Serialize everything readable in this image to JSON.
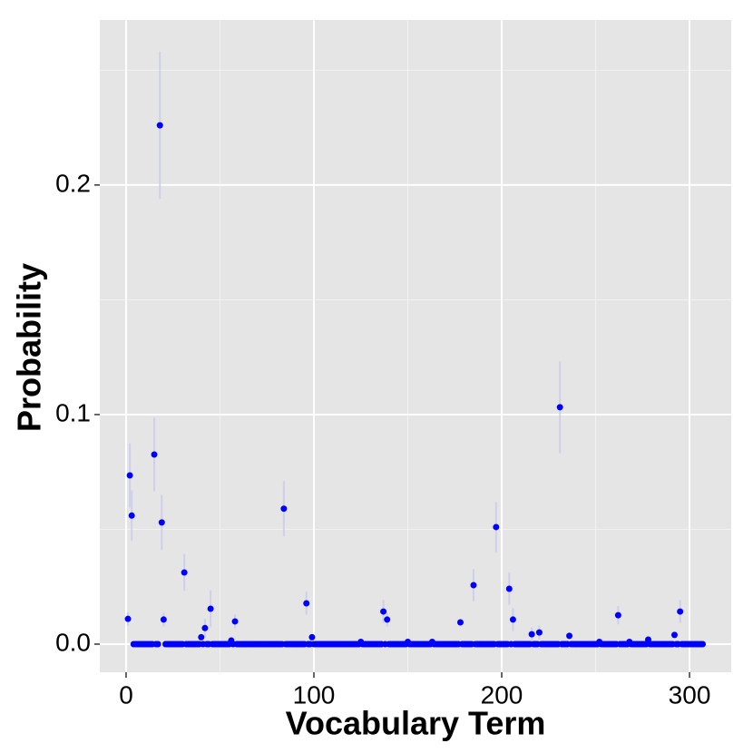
{
  "chart_data": {
    "type": "errorscatter",
    "x_label": "Vocabulary Term",
    "y_label": "Probability",
    "color": "#0000ff",
    "error_color": "#c9c9ee",
    "xlim": [
      -14,
      322.2
    ],
    "ylim": [
      -0.01225,
      0.2719
    ],
    "xticks": [
      0,
      100,
      200,
      300
    ],
    "yticks": [
      {
        "value": 0,
        "label": "0.0"
      },
      0.1,
      0.2
    ],
    "x_minor_grid": [
      50,
      150,
      250
    ],
    "y_minor_grid": [
      0.05,
      0.15,
      0.25
    ],
    "grid": true,
    "x": [
      1,
      2,
      3,
      4,
      5,
      6,
      7,
      8,
      9,
      10,
      11,
      12,
      13,
      14,
      15,
      16,
      17,
      18,
      19,
      20,
      21,
      22,
      23,
      24,
      25,
      26,
      27,
      28,
      29,
      30,
      31,
      32,
      33,
      34,
      35,
      36,
      37,
      38,
      39,
      40,
      41,
      42,
      43,
      44,
      45,
      46,
      47,
      48,
      49,
      50,
      51,
      52,
      53,
      54,
      55,
      56,
      57,
      58,
      59,
      60,
      61,
      62,
      63,
      64,
      65,
      66,
      67,
      68,
      69,
      70,
      71,
      72,
      73,
      74,
      75,
      76,
      77,
      78,
      79,
      80,
      81,
      82,
      83,
      84,
      85,
      86,
      87,
      88,
      89,
      90,
      91,
      92,
      93,
      94,
      95,
      96,
      97,
      98,
      99,
      100,
      101,
      102,
      103,
      104,
      105,
      106,
      107,
      108,
      109,
      110,
      111,
      112,
      113,
      114,
      115,
      116,
      117,
      118,
      119,
      120,
      121,
      122,
      123,
      124,
      125,
      126,
      127,
      128,
      129,
      130,
      131,
      132,
      133,
      134,
      135,
      136,
      137,
      138,
      139,
      140,
      141,
      142,
      143,
      144,
      145,
      146,
      147,
      148,
      149,
      150,
      151,
      152,
      153,
      154,
      155,
      156,
      157,
      158,
      159,
      160,
      161,
      162,
      163,
      164,
      165,
      166,
      167,
      168,
      169,
      170,
      171,
      172,
      173,
      174,
      175,
      176,
      177,
      178,
      179,
      180,
      181,
      182,
      183,
      184,
      185,
      186,
      187,
      188,
      189,
      190,
      191,
      192,
      193,
      194,
      195,
      196,
      197,
      198,
      199,
      200,
      201,
      202,
      203,
      204,
      205,
      206,
      207,
      208,
      209,
      210,
      211,
      212,
      213,
      214,
      215,
      216,
      217,
      218,
      219,
      220,
      221,
      222,
      223,
      224,
      225,
      226,
      227,
      228,
      229,
      230,
      231,
      232,
      233,
      234,
      235,
      236,
      237,
      238,
      239,
      240,
      241,
      242,
      243,
      244,
      245,
      246,
      247,
      248,
      249,
      250,
      251,
      252,
      253,
      254,
      255,
      256,
      257,
      258,
      259,
      260,
      261,
      262,
      263,
      264,
      265,
      266,
      267,
      268,
      269,
      270,
      271,
      272,
      273,
      274,
      275,
      276,
      277,
      278,
      279,
      280,
      281,
      282,
      283,
      284,
      285,
      286,
      287,
      288,
      289,
      290,
      291,
      292,
      293,
      294,
      295,
      296,
      297,
      298,
      299,
      300,
      301,
      302,
      303,
      304,
      305,
      306,
      307
    ],
    "values": [
      0.011,
      0.0735,
      0.056,
      0,
      0,
      0,
      0,
      0,
      0,
      0,
      0,
      0,
      0,
      0,
      0.0826,
      0,
      0,
      0.226,
      0.053,
      0.0107,
      0,
      0,
      0,
      0,
      0,
      0,
      0,
      0,
      0,
      0,
      0.0312,
      0,
      0,
      0,
      0,
      0,
      0,
      0,
      0,
      0.003,
      0,
      0.007,
      0,
      0,
      0.0154,
      0,
      0,
      0,
      0,
      0,
      0,
      0,
      0,
      0,
      0,
      0.0016,
      0,
      0.0099,
      0,
      0,
      0,
      0,
      0,
      0,
      0,
      0,
      0,
      0,
      0,
      0,
      0,
      0,
      0,
      0,
      0,
      0,
      0,
      0,
      0,
      0,
      0,
      0,
      0,
      0.059,
      0,
      0,
      0,
      0,
      0,
      0,
      0,
      0,
      0,
      0,
      0,
      0.0178,
      0,
      0,
      0.003,
      0,
      0,
      0,
      0,
      0,
      0,
      0,
      0,
      0,
      0,
      0,
      0,
      0,
      0,
      0,
      0,
      0,
      0,
      0,
      0,
      0,
      0,
      0,
      0,
      0,
      0.001,
      0,
      0,
      0,
      0,
      0,
      0,
      0,
      0,
      0,
      0,
      0,
      0.0142,
      0,
      0.0107,
      0,
      0,
      0,
      0,
      0,
      0,
      0,
      0,
      0,
      0,
      0.001,
      0,
      0,
      0,
      0,
      0,
      0,
      0,
      0,
      0,
      0,
      0,
      0,
      0.001,
      0,
      0,
      0,
      0,
      0,
      0,
      0,
      0,
      0,
      0,
      0,
      0,
      0,
      0,
      0.0095,
      0,
      0,
      0,
      0,
      0,
      0,
      0.0257,
      0,
      0,
      0,
      0,
      0,
      0,
      0,
      0,
      0,
      0,
      0,
      0.051,
      0,
      0,
      0,
      0,
      0,
      0,
      0.0241,
      0,
      0.0107,
      0,
      0,
      0,
      0,
      0,
      0,
      0,
      0,
      0,
      0.0043,
      0,
      0,
      0,
      0.0051,
      0,
      0,
      0,
      0,
      0,
      0,
      0,
      0,
      0,
      0,
      0.1032,
      0,
      0,
      0,
      0,
      0.0036,
      0,
      0,
      0,
      0,
      0,
      0,
      0,
      0,
      0,
      0,
      0,
      0,
      0,
      0,
      0,
      0.001,
      0,
      0,
      0,
      0,
      0,
      0,
      0,
      0,
      0,
      0.0126,
      0,
      0,
      0,
      0,
      0,
      0.001,
      0,
      0,
      0,
      0,
      0,
      0,
      0,
      0,
      0,
      0.002,
      0,
      0,
      0,
      0,
      0,
      0,
      0,
      0,
      0,
      0,
      0,
      0,
      0,
      0.004,
      0,
      0,
      0.0142,
      0,
      0,
      0,
      0,
      0,
      0,
      0,
      0,
      0,
      0,
      0,
      0
    ],
    "errors": [
      0.003,
      0.014,
      0.011,
      0,
      0,
      0,
      0,
      0,
      0,
      0,
      0,
      0,
      0,
      0,
      0.016,
      0,
      0,
      0.032,
      0.012,
      0.003,
      0,
      0,
      0,
      0,
      0,
      0,
      0,
      0,
      0,
      0,
      0.008,
      0,
      0,
      0,
      0,
      0,
      0,
      0,
      0,
      0,
      0,
      0.004,
      0,
      0,
      0.008,
      0,
      0,
      0,
      0,
      0,
      0,
      0,
      0,
      0,
      0,
      0,
      0,
      0.003,
      0,
      0,
      0,
      0,
      0,
      0,
      0,
      0,
      0,
      0,
      0,
      0,
      0,
      0,
      0,
      0,
      0,
      0,
      0,
      0,
      0,
      0,
      0,
      0,
      0,
      0.012,
      0,
      0,
      0,
      0,
      0,
      0,
      0,
      0,
      0,
      0,
      0,
      0.005,
      0,
      0,
      0,
      0,
      0,
      0,
      0,
      0,
      0,
      0,
      0,
      0,
      0,
      0,
      0,
      0,
      0,
      0,
      0,
      0,
      0,
      0,
      0,
      0,
      0,
      0,
      0,
      0,
      0,
      0,
      0,
      0,
      0,
      0,
      0,
      0,
      0,
      0,
      0,
      0,
      0.005,
      0,
      0.003,
      0,
      0,
      0,
      0,
      0,
      0,
      0,
      0,
      0,
      0,
      0,
      0,
      0,
      0,
      0,
      0,
      0,
      0,
      0,
      0,
      0,
      0,
      0,
      0,
      0,
      0,
      0,
      0,
      0,
      0,
      0,
      0,
      0,
      0,
      0,
      0,
      0,
      0,
      0,
      0,
      0,
      0,
      0,
      0,
      0,
      0.007,
      0,
      0,
      0,
      0,
      0,
      0,
      0,
      0,
      0,
      0,
      0,
      0.011,
      0,
      0,
      0,
      0,
      0,
      0,
      0.007,
      0,
      0.005,
      0,
      0,
      0,
      0,
      0,
      0,
      0,
      0,
      0,
      0.003,
      0,
      0,
      0,
      0.003,
      0,
      0,
      0,
      0,
      0,
      0,
      0,
      0,
      0,
      0,
      0.02,
      0,
      0,
      0,
      0,
      0,
      0,
      0,
      0,
      0,
      0,
      0,
      0,
      0,
      0,
      0,
      0,
      0,
      0,
      0,
      0,
      0,
      0,
      0,
      0,
      0,
      0,
      0,
      0,
      0,
      0,
      0.004,
      0,
      0,
      0,
      0,
      0,
      0,
      0,
      0,
      0,
      0,
      0,
      0,
      0,
      0,
      0,
      0,
      0,
      0,
      0,
      0,
      0,
      0,
      0,
      0,
      0,
      0,
      0,
      0,
      0,
      0,
      0,
      0,
      0.005,
      0,
      0,
      0,
      0,
      0,
      0,
      0,
      0,
      0,
      0,
      0,
      0
    ]
  }
}
